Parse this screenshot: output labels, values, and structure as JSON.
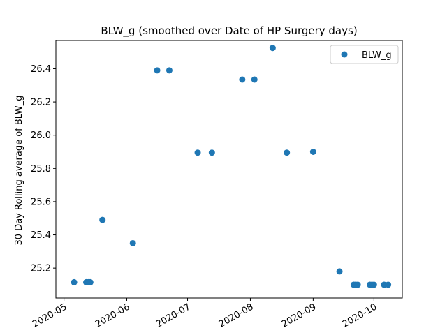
{
  "chart_data": {
    "type": "scatter",
    "title": "BLW_g (smoothed over Date of HP Surgery days)",
    "xlabel": "",
    "ylabel": "30 Day Rolling average of BLW_g",
    "x_tick_labels": [
      "2020-05",
      "2020-06",
      "2020-07",
      "2020-08",
      "2020-09",
      "2020-10"
    ],
    "x_tick_dates": [
      "2020-05-01",
      "2020-06-01",
      "2020-07-01",
      "2020-08-01",
      "2020-09-01",
      "2020-10-01"
    ],
    "y_tick_labels": [
      "25.2",
      "25.4",
      "25.6",
      "25.8",
      "26.0",
      "26.2",
      "26.4"
    ],
    "y_tick_values": [
      25.2,
      25.4,
      25.6,
      25.8,
      26.0,
      26.2,
      26.4
    ],
    "xlim": [
      "2020-04-27",
      "2020-10-15"
    ],
    "ylim": [
      25.02,
      26.57
    ],
    "legend": {
      "position": "upper right",
      "entries": [
        "BLW_g"
      ]
    },
    "grid": false,
    "marker_color": "#1f77b4",
    "series": [
      {
        "name": "BLW_g",
        "points": [
          {
            "x": "2020-05-06",
            "y": 25.115
          },
          {
            "x": "2020-05-12",
            "y": 25.115
          },
          {
            "x": "2020-05-13",
            "y": 25.115
          },
          {
            "x": "2020-05-14",
            "y": 25.115
          },
          {
            "x": "2020-05-20",
            "y": 25.49
          },
          {
            "x": "2020-06-04",
            "y": 25.35
          },
          {
            "x": "2020-06-16",
            "y": 26.39
          },
          {
            "x": "2020-06-22",
            "y": 26.39
          },
          {
            "x": "2020-07-06",
            "y": 25.895
          },
          {
            "x": "2020-07-13",
            "y": 25.895
          },
          {
            "x": "2020-07-28",
            "y": 26.335
          },
          {
            "x": "2020-08-03",
            "y": 26.335
          },
          {
            "x": "2020-08-12",
            "y": 26.525
          },
          {
            "x": "2020-08-19",
            "y": 25.895
          },
          {
            "x": "2020-09-01",
            "y": 25.9
          },
          {
            "x": "2020-09-14",
            "y": 25.18
          },
          {
            "x": "2020-09-21",
            "y": 25.1
          },
          {
            "x": "2020-09-22",
            "y": 25.1
          },
          {
            "x": "2020-09-23",
            "y": 25.1
          },
          {
            "x": "2020-09-29",
            "y": 25.1
          },
          {
            "x": "2020-09-30",
            "y": 25.1
          },
          {
            "x": "2020-10-01",
            "y": 25.1
          },
          {
            "x": "2020-10-06",
            "y": 25.1
          },
          {
            "x": "2020-10-08",
            "y": 25.1
          }
        ]
      }
    ]
  }
}
